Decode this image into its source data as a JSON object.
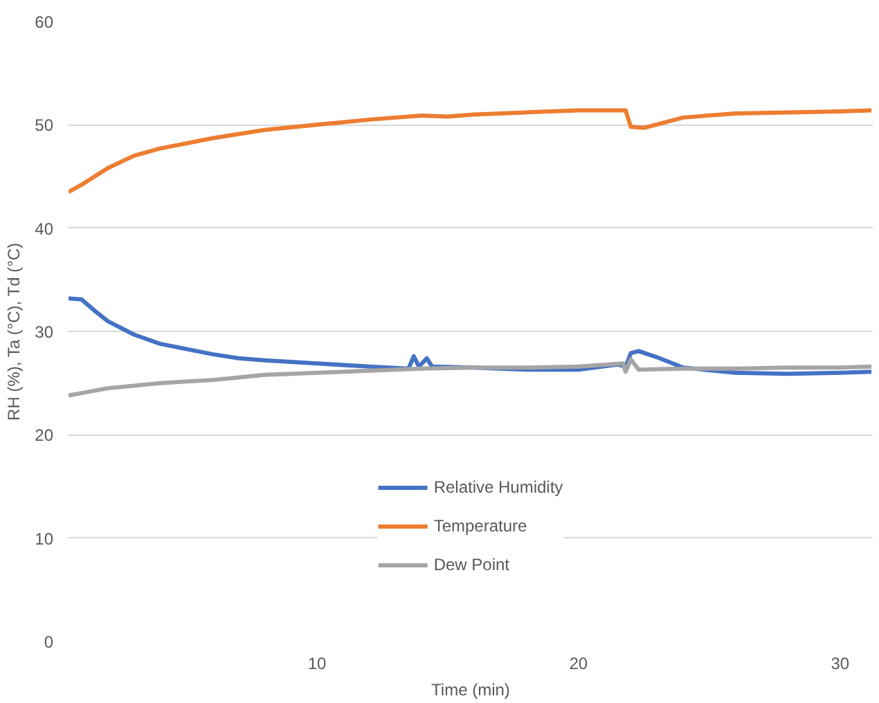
{
  "chart_data": {
    "type": "line",
    "xlabel": "Time (min)",
    "ylabel": "RH (%), Ta (°C), Td (°C)",
    "xlim": [
      0.5,
      31.25
    ],
    "xticks": [
      10,
      20,
      30
    ],
    "ylim": [
      0,
      60
    ],
    "yticks": [
      0,
      10,
      20,
      30,
      40,
      50,
      60
    ],
    "grid": "y",
    "legend": "bottom",
    "line_style": "solid",
    "series": [
      {
        "name": "Relative Humidity",
        "color": "#4472c4",
        "x": [
          0.5,
          1,
          1.5,
          2,
          3,
          4,
          5,
          6,
          7,
          8,
          10,
          12,
          13.5,
          13.7,
          13.9,
          14.2,
          14.4,
          16,
          18,
          20,
          21.5,
          21.8,
          22,
          22.3,
          23,
          24,
          26,
          28,
          30,
          31.2
        ],
        "values": [
          33.2,
          33.1,
          32,
          31,
          29.7,
          28.8,
          28.3,
          27.8,
          27.4,
          27.2,
          26.9,
          26.6,
          26.4,
          27.6,
          26.6,
          27.4,
          26.6,
          26.5,
          26.3,
          26.3,
          26.8,
          26.6,
          27.9,
          28.1,
          27.5,
          26.5,
          26,
          25.9,
          26,
          26.1
        ]
      },
      {
        "name": "Temperature",
        "color": "#ed7d31",
        "x": [
          0.5,
          1,
          2,
          3,
          4,
          5,
          6,
          7,
          8,
          10,
          12,
          14,
          15,
          16,
          18,
          20,
          21.8,
          22,
          22.5,
          24,
          26,
          28,
          30,
          31.2
        ],
        "values": [
          43.5,
          44.2,
          45.8,
          47,
          47.7,
          48.2,
          48.7,
          49.1,
          49.5,
          50,
          50.5,
          50.9,
          50.8,
          51,
          51.2,
          51.4,
          51.4,
          49.8,
          49.7,
          50.7,
          51.1,
          51.2,
          51.3,
          51.4
        ]
      },
      {
        "name": "Dew Point",
        "color": "#a5a5a5",
        "x": [
          0.5,
          2,
          4,
          6,
          8,
          10,
          12,
          14,
          16,
          18,
          20,
          21.7,
          21.8,
          22,
          22.3,
          24,
          26,
          28,
          30,
          31.2
        ],
        "values": [
          23.8,
          24.5,
          25,
          25.3,
          25.8,
          26,
          26.2,
          26.4,
          26.5,
          26.5,
          26.6,
          26.9,
          26.1,
          27.3,
          26.3,
          26.4,
          26.4,
          26.5,
          26.5,
          26.6
        ]
      }
    ]
  }
}
